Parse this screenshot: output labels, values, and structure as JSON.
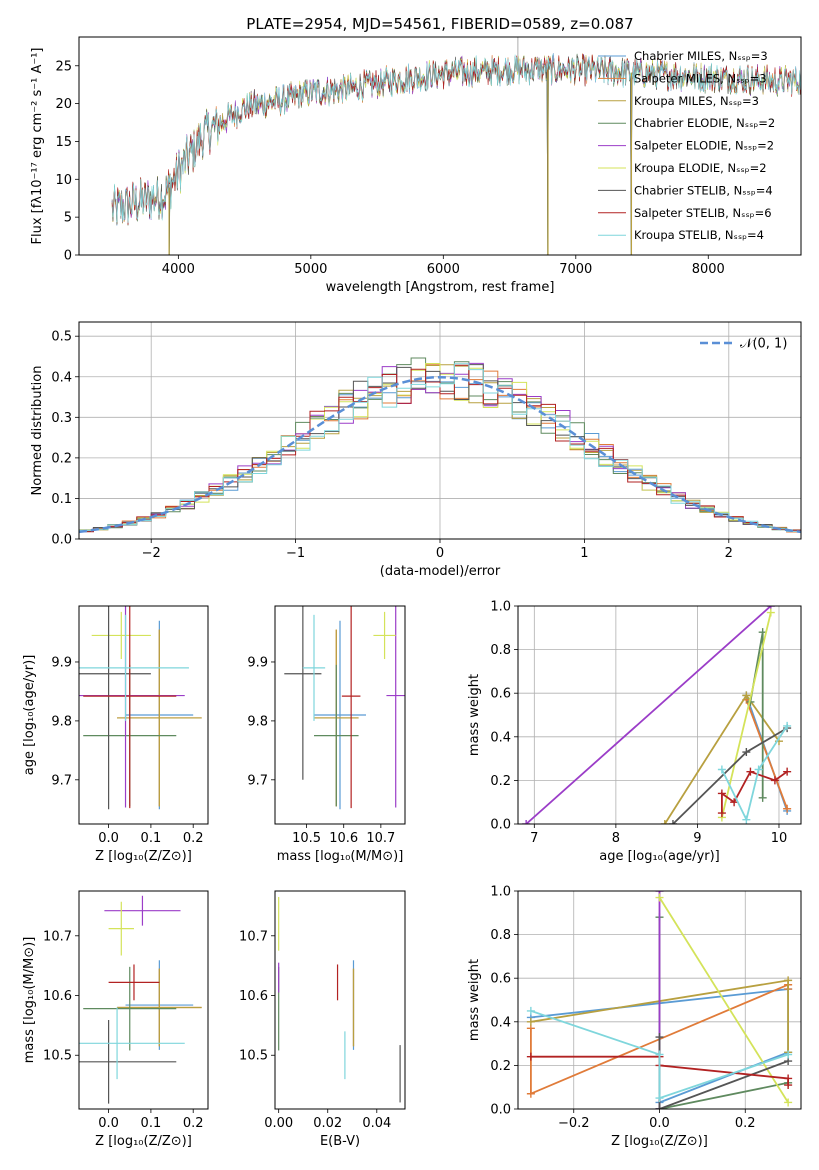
{
  "figure_title": "PLATE=2954, MJD=54561, FIBERID=0589, z=0.087",
  "series_colors": [
    "#5a9bd4",
    "#e07b39",
    "#b8a040",
    "#5f8a5f",
    "#9b3dc8",
    "#d4e35a",
    "#555555",
    "#b22222",
    "#7fd6dc"
  ],
  "chart_data": [
    {
      "id": "spectrum",
      "type": "line",
      "xlabel": "wavelength [Angstrom, rest frame]",
      "ylabel": "Flux [fλ10⁻¹⁷ erg cm⁻² s⁻¹ A⁻¹]",
      "xlim": [
        3250,
        8700
      ],
      "ylim": [
        0,
        28.8
      ],
      "xticks": [
        4000,
        5000,
        6000,
        7000,
        8000
      ],
      "yticks": [
        0,
        5,
        10,
        15,
        20,
        25
      ],
      "grid": false,
      "legend_position": "top-right",
      "legend": [
        "Chabrier MILES, Nₛₛₚ=3",
        "Salpeter MILES, Nₛₛₚ=3",
        "Kroupa MILES, Nₛₛₚ=3",
        "Chabrier ELODIE, Nₛₛₚ=2",
        "Salpeter ELODIE, Nₛₛₚ=2",
        "Kroupa ELODIE, Nₛₛₚ=2",
        "Chabrier STELIB, Nₛₛₚ=4",
        "Salpeter STELIB, Nₛₛₚ=6",
        "Kroupa STELIB, Nₛₛₚ=4"
      ],
      "continuum": {
        "x": [
          3500,
          3700,
          3900,
          4000,
          4200,
          4500,
          4800,
          5000,
          5300,
          5600,
          6000,
          6500,
          7000,
          7500,
          8000,
          8500,
          8700
        ],
        "y": [
          6,
          7,
          8,
          11,
          16,
          19.5,
          20.5,
          21.5,
          22,
          23,
          24,
          24.5,
          24.5,
          24,
          23.5,
          23,
          23
        ]
      },
      "drops": [
        {
          "x": 3930,
          "y": 0
        },
        {
          "x": 6790,
          "y": 0
        },
        {
          "x": 7420,
          "y": 0
        }
      ],
      "spikes": [
        {
          "x": 6563,
          "y": 29
        }
      ]
    },
    {
      "id": "residuals",
      "type": "step",
      "xlabel": "(data-model)/error",
      "ylabel": "Normed distribution",
      "xlim": [
        -2.5,
        2.5
      ],
      "ylim": [
        0,
        0.535
      ],
      "xticks": [
        -2,
        -1,
        0,
        1,
        2
      ],
      "yticks": [
        0.0,
        0.1,
        0.2,
        0.3,
        0.4,
        0.5
      ],
      "grid": true,
      "legend_position": "top-right",
      "legend": [
        "𝒩(0, 1)"
      ],
      "bin_width": 0.1,
      "reference_curve": {
        "type": "normal",
        "mean": 0,
        "sigma": 1,
        "color": "#5a8fd6"
      }
    },
    {
      "id": "age-vs-Z",
      "type": "errorbar",
      "xlabel": "Z [log₁₀(Z/Z⊙)]",
      "ylabel": "age  [log₁₀(age/yr)]",
      "xlim": [
        -0.07,
        0.235
      ],
      "ylim": [
        9.625,
        9.995
      ],
      "xticks": [
        0.0,
        0.1,
        0.2
      ],
      "yticks": [
        9.7,
        9.8,
        9.9
      ],
      "grid": false,
      "points": [
        {
          "x": 0.12,
          "y": 9.81,
          "xerr": 0.08,
          "yerr": 0.16
        },
        {
          "x": 0.12,
          "y": 9.805,
          "xerr": 0.1,
          "yerr": 0.15
        },
        {
          "x": 0.12,
          "y": 9.805,
          "xerr": 0.1,
          "yerr": 0.15
        },
        {
          "x": 0.05,
          "y": 9.775,
          "xerr": 0.11,
          "yerr": 0.12
        },
        {
          "x": 0.04,
          "y": 9.843,
          "xerr": 0.14,
          "yerr": 0.19
        },
        {
          "x": 0.03,
          "y": 9.945,
          "xerr": 0.07,
          "yerr": 0.04
        },
        {
          "x": 0.0,
          "y": 9.88,
          "xerr": 0.1,
          "yerr": 0.23
        },
        {
          "x": 0.05,
          "y": 9.842,
          "xerr": 0.11,
          "yerr": 0.19
        },
        {
          "x": 0.04,
          "y": 9.89,
          "xerr": 0.15,
          "yerr": 0.09
        }
      ]
    },
    {
      "id": "age-vs-mass",
      "type": "errorbar",
      "xlabel": "mass [log₁₀(M/M⊙)]",
      "ylabel": "",
      "xlim": [
        10.415,
        10.765
      ],
      "ylim": [
        9.625,
        9.995
      ],
      "xticks": [
        10.5,
        10.6,
        10.7
      ],
      "yticks": [
        9.7,
        9.8,
        9.9
      ],
      "grid": false,
      "points": [
        {
          "x": 10.59,
          "y": 9.81,
          "xerr": 0.07,
          "yerr": 0.16
        },
        {
          "x": 10.58,
          "y": 9.805,
          "xerr": 0.06,
          "yerr": 0.15
        },
        {
          "x": 10.58,
          "y": 9.805,
          "xerr": 0.06,
          "yerr": 0.15
        },
        {
          "x": 10.58,
          "y": 9.775,
          "xerr": 0.06,
          "yerr": 0.12
        },
        {
          "x": 10.74,
          "y": 9.843,
          "xerr": 0.025,
          "yerr": 0.19
        },
        {
          "x": 10.71,
          "y": 9.945,
          "xerr": 0.03,
          "yerr": 0.04
        },
        {
          "x": 10.49,
          "y": 9.88,
          "xerr": 0.05,
          "yerr": 0.18
        },
        {
          "x": 10.62,
          "y": 9.842,
          "xerr": 0.025,
          "yerr": 0.19
        },
        {
          "x": 10.52,
          "y": 9.89,
          "xerr": 0.03,
          "yerr": 0.09
        }
      ]
    },
    {
      "id": "mass-weight-vs-age",
      "type": "line",
      "xlabel": "age  [log₁₀(age/yr)]",
      "ylabel": "mass weight",
      "xlim": [
        6.8,
        10.27
      ],
      "ylim": [
        0,
        1
      ],
      "xticks": [
        7,
        8,
        9,
        10
      ],
      "yticks": [
        0.0,
        0.2,
        0.4,
        0.6,
        0.8,
        1.0
      ],
      "grid": true,
      "series": [
        {
          "x": [
            9.6,
            10.1
          ],
          "y": [
            0.59,
            0.06
          ]
        },
        {
          "x": [
            9.6,
            10.1
          ],
          "y": [
            0.57,
            0.07
          ]
        },
        {
          "x": [
            8.6,
            9.6,
            10.0
          ],
          "y": [
            0.0,
            0.59,
            0.38
          ]
        },
        {
          "x": [
            9.65,
            9.8,
            9.8
          ],
          "y": [
            0.56,
            0.88,
            0.12
          ]
        },
        {
          "x": [
            6.9,
            9.9
          ],
          "y": [
            0.0,
            1.0
          ]
        },
        {
          "x": [
            9.3,
            9.9
          ],
          "y": [
            0.03,
            0.97
          ]
        },
        {
          "x": [
            8.7,
            9.6,
            10.1
          ],
          "y": [
            0.0,
            0.33,
            0.44
          ]
        },
        {
          "x": [
            9.3,
            9.3,
            9.45,
            9.65,
            9.95,
            10.1
          ],
          "y": [
            0.05,
            0.14,
            0.1,
            0.24,
            0.2,
            0.24
          ]
        },
        {
          "x": [
            9.3,
            9.6,
            9.75,
            10.1
          ],
          "y": [
            0.25,
            0.02,
            0.25,
            0.45
          ]
        }
      ]
    },
    {
      "id": "mass-vs-Z",
      "type": "errorbar",
      "xlabel": "Z [log₁₀(Z/Z⊙)]",
      "ylabel": "mass [log₁₀(M/M⊙)]",
      "xlim": [
        -0.07,
        0.235
      ],
      "ylim": [
        10.41,
        10.775
      ],
      "xticks": [
        0.0,
        0.1,
        0.2
      ],
      "yticks": [
        10.5,
        10.6,
        10.7
      ],
      "grid": false,
      "points": [
        {
          "x": 0.12,
          "y": 10.584,
          "xerr": 0.08,
          "yerr": 0.075
        },
        {
          "x": 0.12,
          "y": 10.58,
          "xerr": 0.1,
          "yerr": 0.065
        },
        {
          "x": 0.12,
          "y": 10.58,
          "xerr": 0.1,
          "yerr": 0.065
        },
        {
          "x": 0.05,
          "y": 10.578,
          "xerr": 0.11,
          "yerr": 0.07
        },
        {
          "x": 0.08,
          "y": 10.742,
          "xerr": 0.09,
          "yerr": 0.025
        },
        {
          "x": 0.03,
          "y": 10.712,
          "xerr": 0.03,
          "yerr": 0.045
        },
        {
          "x": 0.0,
          "y": 10.489,
          "xerr": 0.16,
          "yerr": 0.07
        },
        {
          "x": 0.06,
          "y": 10.622,
          "xerr": 0.06,
          "yerr": 0.03
        },
        {
          "x": 0.02,
          "y": 10.52,
          "xerr": 0.16,
          "yerr": 0.06
        }
      ]
    },
    {
      "id": "mass-vs-ebv",
      "type": "errorbar",
      "xlabel": "E(B-V)",
      "ylabel": "",
      "xlim": [
        -0.0015,
        0.0515
      ],
      "ylim": [
        10.41,
        10.775
      ],
      "xticks": [
        0.0,
        0.02,
        0.04
      ],
      "yticks": [
        10.5,
        10.6,
        10.7
      ],
      "grid": false,
      "points": [
        {
          "x": 0.0305,
          "y": 10.584,
          "xerr": 0,
          "yerr": 0.075
        },
        {
          "x": 0.0305,
          "y": 10.58,
          "xerr": 0,
          "yerr": 0.065
        },
        {
          "x": 0.0305,
          "y": 10.58,
          "xerr": 0,
          "yerr": 0.065
        },
        {
          "x": 0.0,
          "y": 10.578,
          "xerr": 0,
          "yerr": 0.07
        },
        {
          "x": 0.0,
          "y": 10.63,
          "xerr": 0,
          "yerr": 0.025
        },
        {
          "x": 0.0,
          "y": 10.72,
          "xerr": 0,
          "yerr": 0.045
        },
        {
          "x": 0.0495,
          "y": 10.469,
          "xerr": 0,
          "yerr": 0.048
        },
        {
          "x": 0.024,
          "y": 10.622,
          "xerr": 0,
          "yerr": 0.03
        },
        {
          "x": 0.027,
          "y": 10.5,
          "xerr": 0,
          "yerr": 0.04
        }
      ]
    },
    {
      "id": "mass-weight-vs-Z",
      "type": "line",
      "xlabel": "Z [log₁₀(Z/Z⊙)]",
      "ylabel": "mass weight",
      "xlim": [
        -0.33,
        0.33
      ],
      "ylim": [
        0,
        1
      ],
      "xticks": [
        -0.2,
        0.0,
        0.2
      ],
      "yticks": [
        0.0,
        0.2,
        0.4,
        0.6,
        0.8,
        1.0
      ],
      "grid": true,
      "series": [
        {
          "x": [
            -0.3,
            0.3,
            0.3,
            0.0
          ],
          "y": [
            0.42,
            0.55,
            0.26,
            0.03
          ]
        },
        {
          "x": [
            -0.3,
            -0.3,
            0.3,
            0.3
          ],
          "y": [
            0.37,
            0.07,
            0.57,
            0.55
          ]
        },
        {
          "x": [
            -0.3,
            0.3,
            0.3
          ],
          "y": [
            0.4,
            0.59,
            0.26
          ]
        },
        {
          "x": [
            0.0,
            0.0,
            0.3
          ],
          "y": [
            0.88,
            0.0,
            0.12
          ]
        },
        {
          "x": [
            0.0,
            0.0
          ],
          "y": [
            0.0,
            1.0
          ]
        },
        {
          "x": [
            0.0,
            0.3
          ],
          "y": [
            0.97,
            0.03
          ]
        },
        {
          "x": [
            0.0,
            0.0,
            0.3
          ],
          "y": [
            0.33,
            0.0,
            0.22
          ]
        },
        {
          "x": [
            -0.3,
            0.0,
            0.0,
            0.3,
            0.3
          ],
          "y": [
            0.24,
            0.24,
            0.2,
            0.14,
            0.11
          ]
        },
        {
          "x": [
            -0.3,
            0.0,
            0.0,
            0.3
          ],
          "y": [
            0.45,
            0.25,
            0.05,
            0.25
          ]
        }
      ]
    }
  ]
}
